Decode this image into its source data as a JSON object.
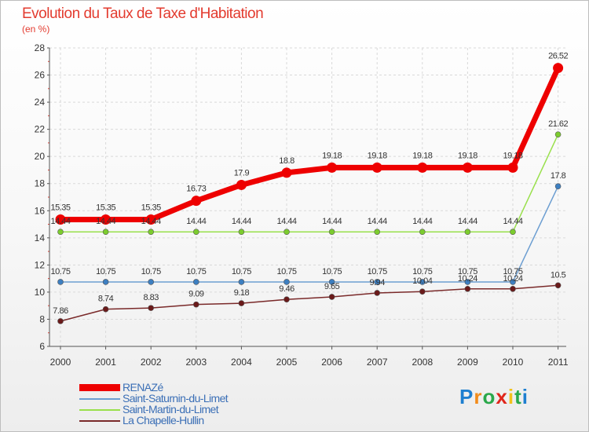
{
  "title": "Evolution du Taux de Taxe d'Habitation",
  "subtitle": "(en %)",
  "logo": {
    "text": "Proxiti",
    "letter_colors": [
      "#1e7fd0",
      "#f28c1b",
      "#2aa84a",
      "#e0261b",
      "#f2c21b",
      "#2aa84a",
      "#1e7fd0"
    ]
  },
  "chart_data": {
    "type": "line",
    "x": [
      "2000",
      "2001",
      "2002",
      "2003",
      "2004",
      "2005",
      "2006",
      "2007",
      "2008",
      "2009",
      "2010",
      "2011"
    ],
    "ylim": [
      6,
      28
    ],
    "yticks": [
      "6",
      "8",
      "10",
      "12",
      "14",
      "16",
      "18",
      "20",
      "22",
      "24",
      "26",
      "28"
    ],
    "grid": true,
    "series": [
      {
        "name": "RENAZé",
        "color": "#ee0000",
        "values": [
          15.35,
          15.35,
          15.35,
          16.73,
          17.9,
          18.8,
          19.18,
          19.18,
          19.18,
          19.18,
          19.18,
          26.52
        ],
        "labels": [
          "15.35",
          "15.35",
          "15.35",
          "16.73",
          "17.9",
          "18.8",
          "19.18",
          "19.18",
          "19.18",
          "19.18",
          "19.18",
          "26.52"
        ]
      },
      {
        "name": "Saint-Saturnin-du-Limet",
        "color": "#6c9ed1",
        "values": [
          10.75,
          10.75,
          10.75,
          10.75,
          10.75,
          10.75,
          10.75,
          10.75,
          10.75,
          10.75,
          10.75,
          17.8
        ],
        "labels": [
          "10.75",
          "10.75",
          "10.75",
          "10.75",
          "10.75",
          "10.75",
          "10.75",
          "10.75",
          "10.75",
          "10.75",
          "10.75",
          "17.8"
        ]
      },
      {
        "name": "Saint-Martin-du-Limet",
        "color": "#99e04c",
        "values": [
          14.44,
          14.44,
          14.44,
          14.44,
          14.44,
          14.44,
          14.44,
          14.44,
          14.44,
          14.44,
          14.44,
          21.62
        ],
        "labels": [
          "14.44",
          "14.44",
          "14.44",
          "14.44",
          "14.44",
          "14.44",
          "14.44",
          "14.44",
          "14.44",
          "14.44",
          "14.44",
          "21.62"
        ]
      },
      {
        "name": "La Chapelle-Hullin",
        "color": "#7a2a2a",
        "values": [
          7.86,
          8.74,
          8.83,
          9.09,
          9.18,
          9.46,
          9.65,
          9.94,
          10.04,
          10.24,
          10.24,
          10.5
        ],
        "labels": [
          "7.86",
          "8.74",
          "8.83",
          "9.09",
          "9.18",
          "9.46",
          "9.65",
          "9.94",
          "10.04",
          "10.24",
          "10.24",
          "10.5"
        ]
      }
    ]
  }
}
